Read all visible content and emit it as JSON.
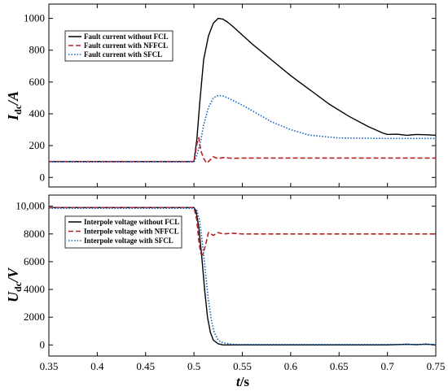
{
  "chart_data": [
    {
      "type": "line",
      "ylabel_main": "I",
      "ylabel_sub": "dc",
      "ylabel_unit": "/A",
      "xlim": [
        0.35,
        0.75
      ],
      "ylim": [
        -60,
        1090
      ],
      "yticks": [
        0,
        200,
        400,
        600,
        800,
        1000
      ],
      "ytick_labels": [
        "0",
        "200",
        "400",
        "600",
        "800",
        "1000"
      ],
      "grid": false,
      "legend_position": "top-left",
      "series": [
        {
          "name": "Fault current without FCL",
          "color": "#000000",
          "dash": "solid",
          "x": [
            0.35,
            0.5,
            0.503,
            0.506,
            0.51,
            0.515,
            0.52,
            0.525,
            0.53,
            0.535,
            0.54,
            0.55,
            0.56,
            0.58,
            0.6,
            0.62,
            0.64,
            0.66,
            0.68,
            0.695,
            0.7,
            0.71,
            0.72,
            0.73,
            0.74,
            0.75
          ],
          "y": [
            100,
            100,
            240,
            470,
            740,
            890,
            970,
            1000,
            995,
            975,
            950,
            895,
            840,
            740,
            640,
            550,
            460,
            385,
            320,
            280,
            270,
            272,
            265,
            270,
            268,
            265
          ]
        },
        {
          "name": "Fault current with NFFCL",
          "color": "#b52020",
          "dash": "dashed",
          "x": [
            0.35,
            0.5,
            0.503,
            0.505,
            0.507,
            0.51,
            0.513,
            0.516,
            0.52,
            0.525,
            0.53,
            0.54,
            0.55,
            0.6,
            0.65,
            0.7,
            0.75
          ],
          "y": [
            100,
            100,
            210,
            250,
            170,
            120,
            90,
            105,
            130,
            118,
            125,
            120,
            122,
            122,
            122,
            122,
            122
          ]
        },
        {
          "name": "Fault current with SFCL",
          "color": "#1060c0",
          "dash": "dotted",
          "x": [
            0.35,
            0.5,
            0.503,
            0.507,
            0.51,
            0.515,
            0.52,
            0.525,
            0.53,
            0.535,
            0.54,
            0.55,
            0.56,
            0.57,
            0.58,
            0.6,
            0.62,
            0.65,
            0.7,
            0.75
          ],
          "y": [
            97,
            97,
            140,
            230,
            330,
            440,
            500,
            515,
            512,
            500,
            485,
            455,
            420,
            385,
            350,
            300,
            265,
            248,
            245,
            245
          ]
        }
      ]
    },
    {
      "type": "line",
      "ylabel_main": "U",
      "ylabel_sub": "dc",
      "ylabel_unit": "/V",
      "xlabel_main": "t",
      "xlabel_unit": "/s",
      "xlim": [
        0.35,
        0.75
      ],
      "ylim": [
        -800,
        10800
      ],
      "yticks": [
        0,
        2000,
        4000,
        6000,
        8000,
        10000
      ],
      "ytick_labels": [
        "0",
        "2000",
        "4000",
        "6000",
        "8000",
        "10,000"
      ],
      "xticks": [
        0.35,
        0.4,
        0.45,
        0.5,
        0.55,
        0.6,
        0.65,
        0.7,
        0.75
      ],
      "xtick_labels": [
        "0.35",
        "0.4",
        "0.45",
        "0.5",
        "0.55",
        "0.6",
        "0.65",
        "0.7",
        "0.75"
      ],
      "grid": false,
      "legend_position": "top-left",
      "series": [
        {
          "name": "Interpole voltage without FCL",
          "color": "#000000",
          "dash": "solid",
          "x": [
            0.35,
            0.5,
            0.502,
            0.505,
            0.508,
            0.511,
            0.514,
            0.517,
            0.52,
            0.525,
            0.53,
            0.55,
            0.6,
            0.65,
            0.7,
            0.72,
            0.73,
            0.74,
            0.75
          ],
          "y": [
            9900,
            9900,
            9700,
            8500,
            6400,
            4000,
            2000,
            900,
            350,
            80,
            0,
            0,
            0,
            0,
            0,
            50,
            20,
            60,
            0
          ]
        },
        {
          "name": "Interpole voltage with NFFCL",
          "color": "#b52020",
          "dash": "dashed",
          "x": [
            0.35,
            0.5,
            0.503,
            0.505,
            0.507,
            0.509,
            0.512,
            0.515,
            0.52,
            0.525,
            0.53,
            0.54,
            0.55,
            0.6,
            0.65,
            0.7,
            0.75
          ],
          "y": [
            9900,
            9900,
            9000,
            7500,
            6600,
            6500,
            7200,
            8100,
            7900,
            8100,
            8000,
            8050,
            8000,
            8000,
            8000,
            8000,
            8000
          ]
        },
        {
          "name": "Interpole voltage with SFCL",
          "color": "#1060c0",
          "dash": "dotted",
          "x": [
            0.35,
            0.5,
            0.503,
            0.506,
            0.509,
            0.512,
            0.515,
            0.518,
            0.521,
            0.525,
            0.53,
            0.54,
            0.55,
            0.6,
            0.65,
            0.7,
            0.75
          ],
          "y": [
            9850,
            9850,
            9700,
            8900,
            7200,
            5100,
            3200,
            1800,
            900,
            350,
            150,
            50,
            30,
            30,
            30,
            30,
            30
          ]
        }
      ]
    }
  ]
}
